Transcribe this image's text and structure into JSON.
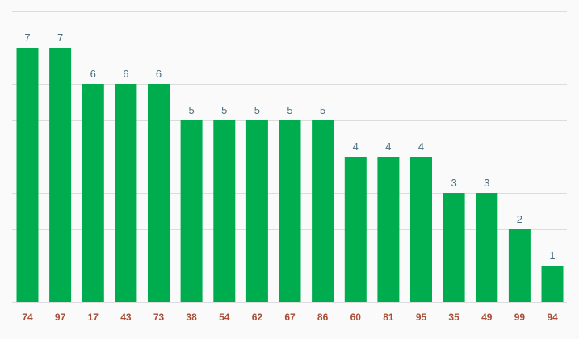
{
  "chart_data": {
    "type": "bar",
    "title": "",
    "xlabel": "",
    "ylabel": "",
    "categories": [
      "74",
      "97",
      "17",
      "43",
      "73",
      "38",
      "54",
      "62",
      "67",
      "86",
      "60",
      "81",
      "95",
      "35",
      "49",
      "99",
      "94"
    ],
    "values": [
      7,
      7,
      6,
      6,
      6,
      5,
      5,
      5,
      5,
      5,
      4,
      4,
      4,
      3,
      3,
      2,
      1
    ],
    "ylim": [
      0,
      8
    ],
    "grid": true,
    "legend": "none",
    "colors": {
      "bar": "#00ad4e",
      "value_label": "#4a6e80",
      "tick_label": "#a94d35",
      "grid": "#dcdcdc",
      "background": "#fafafa"
    }
  }
}
